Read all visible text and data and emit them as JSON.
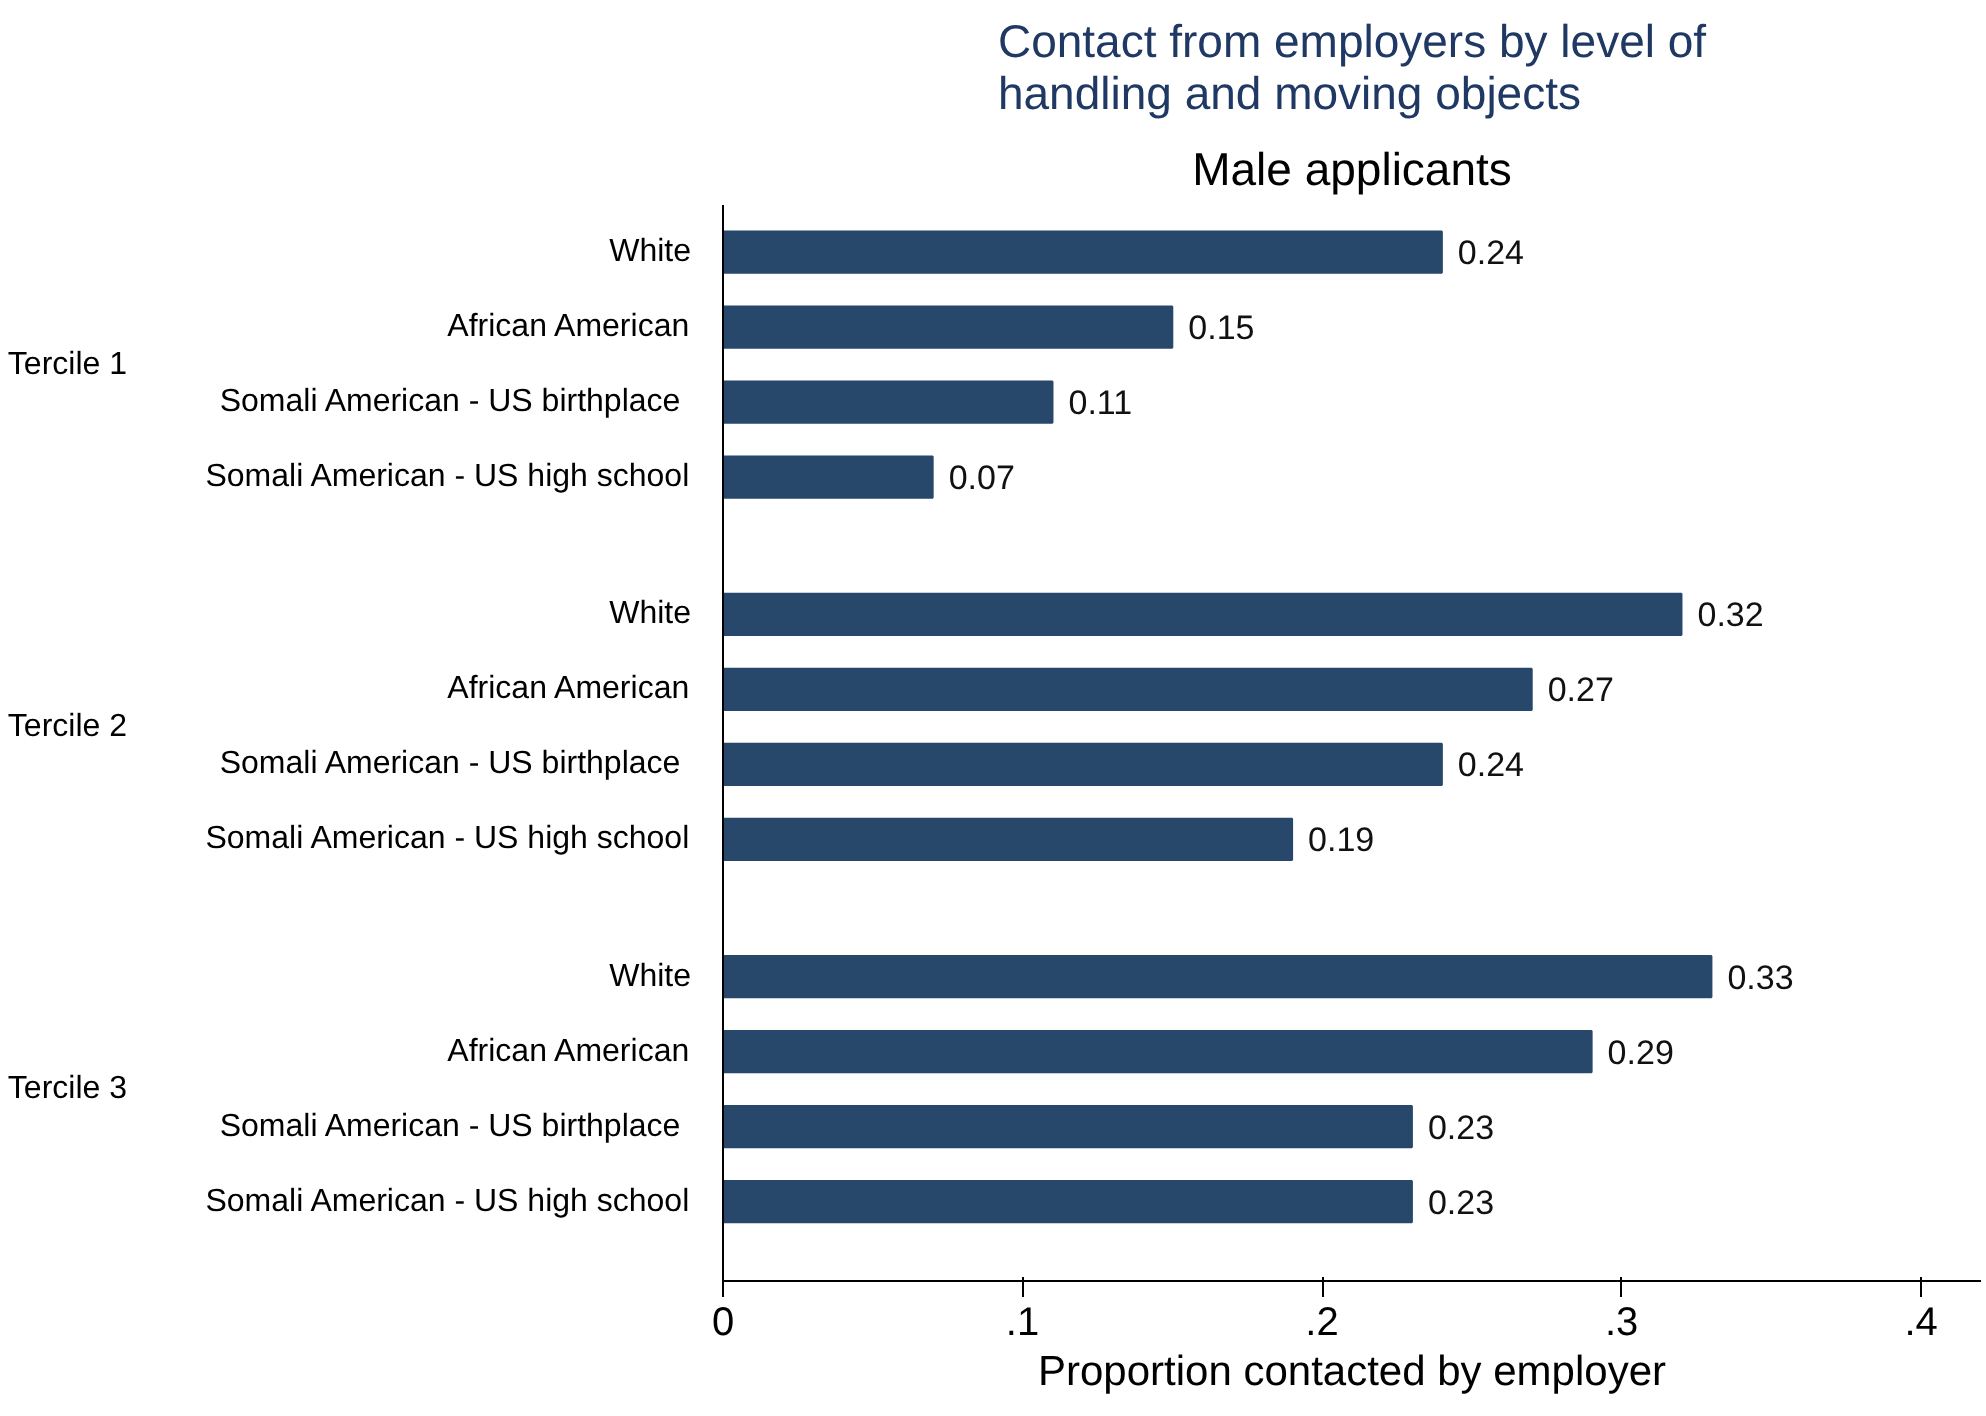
{
  "chart_data": {
    "type": "bar",
    "orientation": "horizontal",
    "title": "Contact from employers by level of\nhandling and moving objects",
    "subtitle": "Male applicants",
    "xlabel": "Proportion contacted by employer",
    "categories": [
      "White",
      "African American",
      "Somali American -  US birthplace",
      "Somali American - US high school",
      "White",
      "African American",
      "Somali American -  US birthplace",
      "Somali American - US high school",
      "White",
      "African American",
      "Somali American -  US birthplace",
      "Somali American - US high school"
    ],
    "values": [
      0.24,
      0.15,
      0.11,
      0.07,
      0.32,
      0.27,
      0.24,
      0.19,
      0.33,
      0.29,
      0.23,
      0.23
    ],
    "color": "#27476b",
    "data_labels": true,
    "annotations": [
      "Tercile 1",
      "Tercile 2",
      "Tercile 3"
    ],
    "xlim": [
      0,
      0.42
    ],
    "xticks": [
      0,
      {
        "value": 0.1,
        "label": ".1"
      },
      {
        "value": 0.2,
        "label": ".2"
      },
      {
        "value": 0.3,
        "label": ".3"
      },
      {
        "value": 0.4,
        "label": ".4"
      }
    ],
    "grid": false
  }
}
